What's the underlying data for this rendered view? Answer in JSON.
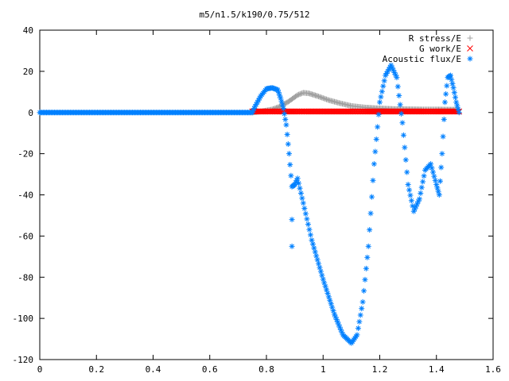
{
  "chart_data": {
    "type": "scatter",
    "title": "m5/n1.5/k190/0.75/512",
    "xlabel": "",
    "ylabel": "",
    "xlim": [
      0,
      1.6
    ],
    "ylim": [
      -120,
      40
    ],
    "xticks": [
      "0",
      "0.2",
      "0.4",
      "0.6",
      "0.8",
      "1",
      "1.2",
      "1.4",
      "1.6"
    ],
    "yticks": [
      "40",
      "20",
      "0",
      "-20",
      "-40",
      "-60",
      "-80",
      "-100",
      "-120"
    ],
    "grid": false,
    "legend_position": "top-right",
    "series": [
      {
        "name": "R stress/E",
        "marker": "+",
        "color": "#a0a0a0",
        "points": [
          [
            0.75,
            0.0
          ],
          [
            0.78,
            0.5
          ],
          [
            0.82,
            1.5
          ],
          [
            0.85,
            3.0
          ],
          [
            0.88,
            5.5
          ],
          [
            0.91,
            8.5
          ],
          [
            0.93,
            9.6
          ],
          [
            0.95,
            9.3
          ],
          [
            0.98,
            8.0
          ],
          [
            1.02,
            6.0
          ],
          [
            1.06,
            4.5
          ],
          [
            1.1,
            3.2
          ],
          [
            1.15,
            2.4
          ],
          [
            1.2,
            2.0
          ],
          [
            1.25,
            1.7
          ],
          [
            1.3,
            1.6
          ],
          [
            1.35,
            1.5
          ],
          [
            1.4,
            1.5
          ],
          [
            1.45,
            1.4
          ],
          [
            1.48,
            1.4
          ]
        ]
      },
      {
        "name": "G work/E",
        "marker": "x",
        "color": "#ff0000",
        "points": [
          [
            0.75,
            0.5
          ],
          [
            0.8,
            0.5
          ],
          [
            0.85,
            0.5
          ],
          [
            0.9,
            0.5
          ],
          [
            0.95,
            0.5
          ],
          [
            1.0,
            0.5
          ],
          [
            1.05,
            0.5
          ],
          [
            1.1,
            0.5
          ],
          [
            1.15,
            0.5
          ],
          [
            1.2,
            0.5
          ],
          [
            1.25,
            0.5
          ],
          [
            1.3,
            0.5
          ],
          [
            1.35,
            0.5
          ],
          [
            1.4,
            0.5
          ],
          [
            1.45,
            0.5
          ],
          [
            1.48,
            0.5
          ]
        ]
      },
      {
        "name": "Acoustic flux/E",
        "marker": "*",
        "color": "#0080ff",
        "points": [
          [
            0.0,
            0.0
          ],
          [
            0.75,
            0.0
          ],
          [
            0.76,
            3.0
          ],
          [
            0.78,
            8.0
          ],
          [
            0.8,
            11.5
          ],
          [
            0.82,
            12.0
          ],
          [
            0.84,
            11.0
          ],
          [
            0.85,
            7.0
          ],
          [
            0.86,
            2.0
          ],
          [
            0.87,
            -6.0
          ],
          [
            0.88,
            -20.0
          ],
          [
            0.89,
            -36.0
          ],
          [
            0.9,
            -35.0
          ],
          [
            0.91,
            -32.0
          ],
          [
            0.93,
            -44.0
          ],
          [
            0.96,
            -62.0
          ],
          [
            1.0,
            -81.0
          ],
          [
            1.04,
            -98.0
          ],
          [
            1.07,
            -108.0
          ],
          [
            1.1,
            -112.0
          ],
          [
            1.12,
            -108.0
          ],
          [
            1.14,
            -92.0
          ],
          [
            1.16,
            -65.0
          ],
          [
            1.18,
            -25.0
          ],
          [
            1.2,
            5.0
          ],
          [
            1.22,
            18.0
          ],
          [
            1.24,
            23.0
          ],
          [
            1.26,
            17.0
          ],
          [
            1.28,
            -5.0
          ],
          [
            1.3,
            -35.0
          ],
          [
            1.32,
            -48.0
          ],
          [
            1.34,
            -42.0
          ],
          [
            1.36,
            -28.0
          ],
          [
            1.38,
            -25.0
          ],
          [
            1.4,
            -35.0
          ],
          [
            1.41,
            -40.0
          ],
          [
            1.42,
            -20.0
          ],
          [
            1.43,
            5.0
          ],
          [
            1.44,
            17.0
          ],
          [
            1.45,
            18.0
          ],
          [
            1.46,
            12.0
          ],
          [
            1.47,
            5.0
          ],
          [
            1.48,
            0.0
          ]
        ]
      }
    ],
    "extra_outlier_points": [
      [
        0.89,
        -52.0
      ],
      [
        0.89,
        -65.0
      ]
    ]
  }
}
